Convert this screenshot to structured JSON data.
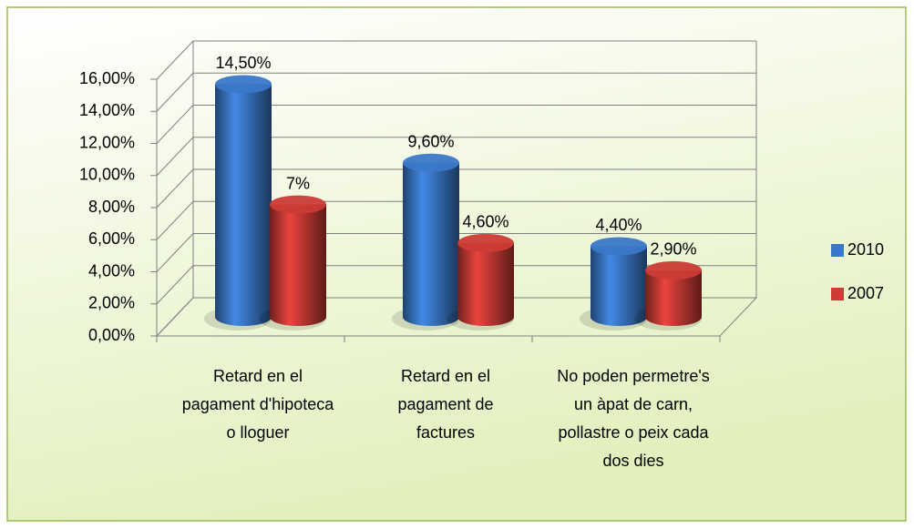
{
  "chart_data": {
    "type": "bar",
    "categories": [
      "Retard en el pagament d'hipoteca o lloguer",
      "Retard en el pagament de factures",
      "No poden permetre's un àpat de carn, pollastre o peix cada dos dies"
    ],
    "series": [
      {
        "name": "2010",
        "color": "#3a78c8",
        "values": [
          14.5,
          9.6,
          4.4
        ],
        "value_labels": [
          "14,50%",
          "9,60%",
          "4,40%"
        ]
      },
      {
        "name": "2007",
        "color": "#cc3b36",
        "values": [
          7,
          4.6,
          2.9
        ],
        "value_labels": [
          "7%",
          "4,60%",
          "2,90%"
        ]
      }
    ],
    "ylim": [
      0,
      16
    ],
    "yticks": [
      {
        "value": 0,
        "label": "0,00%"
      },
      {
        "value": 2,
        "label": "2,00%"
      },
      {
        "value": 4,
        "label": "4,00%"
      },
      {
        "value": 6,
        "label": "6,00%"
      },
      {
        "value": 8,
        "label": "8,00%"
      },
      {
        "value": 10,
        "label": "10,00%"
      },
      {
        "value": 12,
        "label": "12,00%"
      },
      {
        "value": 14,
        "label": "14,00%"
      },
      {
        "value": 16,
        "label": "16,00%"
      }
    ],
    "grid": true,
    "legend": "right"
  }
}
